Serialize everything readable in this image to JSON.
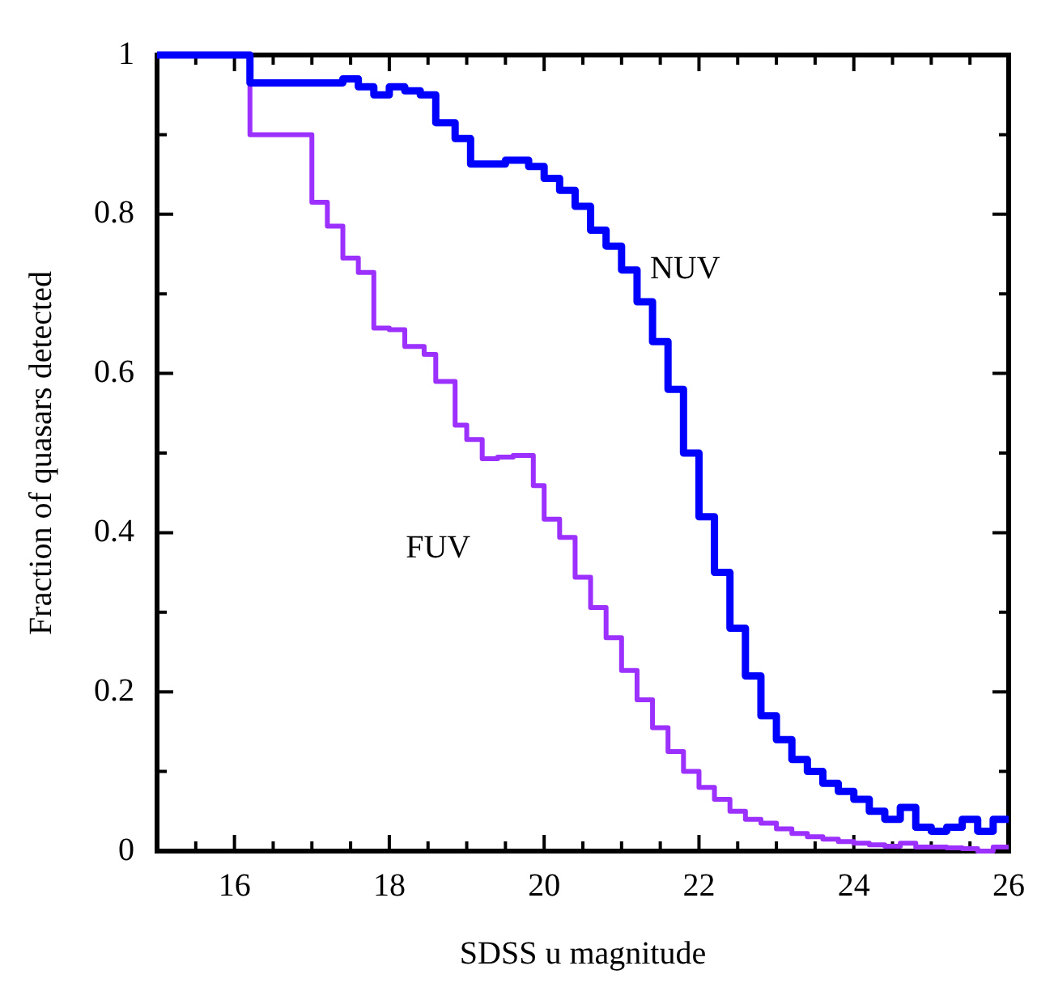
{
  "chart_data": {
    "type": "step",
    "xlabel": "SDSS u magnitude",
    "ylabel": "Fraction of quasars detected",
    "xlim": [
      15,
      26
    ],
    "ylim": [
      0,
      1
    ],
    "xticks": [
      {
        "value": 15,
        "label": null
      },
      {
        "value": 15.5,
        "label": null
      },
      16,
      {
        "value": 16.5,
        "label": null
      },
      {
        "value": 17,
        "label": null
      },
      {
        "value": 17.5,
        "label": null
      },
      18,
      {
        "value": 18.5,
        "label": null
      },
      {
        "value": 19,
        "label": null
      },
      {
        "value": 19.5,
        "label": null
      },
      20,
      {
        "value": 20.5,
        "label": null
      },
      {
        "value": 21,
        "label": null
      },
      {
        "value": 21.5,
        "label": null
      },
      22,
      {
        "value": 22.5,
        "label": null
      },
      {
        "value": 23,
        "label": null
      },
      {
        "value": 23.5,
        "label": null
      },
      24,
      {
        "value": 24.5,
        "label": null
      },
      {
        "value": 25,
        "label": null
      },
      {
        "value": 25.5,
        "label": null
      },
      26
    ],
    "yticks": [
      0,
      {
        "value": 0.1,
        "label": null
      },
      0.2,
      {
        "value": 0.3,
        "label": null
      },
      0.4,
      {
        "value": 0.5,
        "label": null
      },
      0.6,
      {
        "value": 0.7,
        "label": null
      },
      0.8,
      {
        "value": 0.9,
        "label": null
      },
      1
    ],
    "grid": false,
    "legend": false,
    "marker": "none",
    "line_style": "solid",
    "series": [
      {
        "name": "NUV",
        "color": "#0000ff",
        "x": [
          15,
          16.2,
          16.6,
          17.0,
          17.4,
          17.6,
          17.8,
          18.0,
          18.2,
          18.4,
          18.6,
          18.85,
          19.05,
          19.5,
          19.8,
          20.0,
          20.2,
          20.4,
          20.6,
          20.8,
          21.0,
          21.2,
          21.4,
          21.6,
          21.8,
          22.0,
          22.2,
          22.4,
          22.6,
          22.8,
          23.0,
          23.2,
          23.4,
          23.6,
          23.8,
          24.0,
          24.2,
          24.4,
          24.6,
          24.8,
          25.0,
          25.2,
          25.4,
          25.6,
          25.8,
          26
        ],
        "values": [
          1,
          0.965,
          0.965,
          0.965,
          0.97,
          0.96,
          0.95,
          0.96,
          0.955,
          0.95,
          0.915,
          0.895,
          0.863,
          0.868,
          0.86,
          0.845,
          0.83,
          0.81,
          0.78,
          0.76,
          0.73,
          0.69,
          0.64,
          0.58,
          0.5,
          0.42,
          0.35,
          0.28,
          0.22,
          0.17,
          0.14,
          0.115,
          0.1,
          0.085,
          0.075,
          0.065,
          0.05,
          0.04,
          0.055,
          0.03,
          0.025,
          0.03,
          0.04,
          0.025,
          0.04,
          0.04
        ]
      },
      {
        "name": "FUV",
        "color": "#9b30ff",
        "x": [
          15,
          16.2,
          17.0,
          17.2,
          17.4,
          17.6,
          17.8,
          18.0,
          18.2,
          18.45,
          18.6,
          18.85,
          19.0,
          19.2,
          19.4,
          19.6,
          19.86,
          20.0,
          20.2,
          20.4,
          20.6,
          20.8,
          21.0,
          21.2,
          21.4,
          21.6,
          21.8,
          22.0,
          22.2,
          22.4,
          22.6,
          22.8,
          23.0,
          23.2,
          23.4,
          23.6,
          23.8,
          24.0,
          24.2,
          24.4,
          24.6,
          24.8,
          25.0,
          25.2,
          25.4,
          25.6,
          25.8,
          26
        ],
        "values": [
          1,
          0.9,
          0.815,
          0.785,
          0.745,
          0.727,
          0.657,
          0.655,
          0.634,
          0.624,
          0.59,
          0.535,
          0.517,
          0.493,
          0.495,
          0.497,
          0.459,
          0.417,
          0.394,
          0.344,
          0.306,
          0.268,
          0.227,
          0.19,
          0.155,
          0.125,
          0.1,
          0.08,
          0.065,
          0.05,
          0.04,
          0.035,
          0.028,
          0.022,
          0.018,
          0.015,
          0.012,
          0.01,
          0.008,
          0.006,
          0.01,
          0.005,
          0.005,
          0.004,
          0.003,
          0,
          0.005,
          0.005
        ]
      }
    ]
  }
}
